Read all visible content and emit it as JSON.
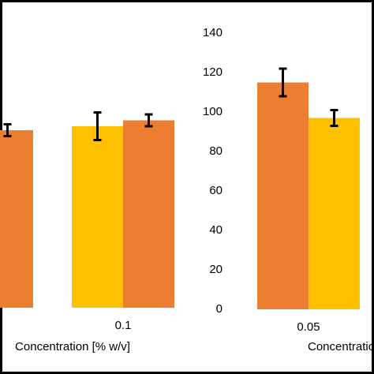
{
  "chart_data": [
    {
      "type": "bar",
      "categories": [
        null,
        "0.1"
      ],
      "series": [
        {
          "color": "#ffc000",
          "values": [
            null,
            92
          ],
          "errors": [
            null,
            7
          ]
        },
        {
          "color": "#ed7d31",
          "values": [
            90,
            95
          ],
          "errors": [
            3,
            3
          ]
        }
      ],
      "ylim": [
        0,
        140
      ],
      "x_label": "Concentration [% w/v]"
    },
    {
      "type": "bar",
      "categories": [
        "0.05"
      ],
      "series": [
        {
          "color": "#ed7d31",
          "values": [
            115
          ],
          "errors": [
            7
          ]
        },
        {
          "color": "#ffc000",
          "values": [
            97
          ],
          "errors": [
            4
          ]
        }
      ],
      "ylim": [
        0,
        140
      ],
      "yticks": [
        0,
        20,
        40,
        60,
        80,
        100,
        120,
        140
      ],
      "x_label": "Concentration [% w/v]"
    }
  ]
}
